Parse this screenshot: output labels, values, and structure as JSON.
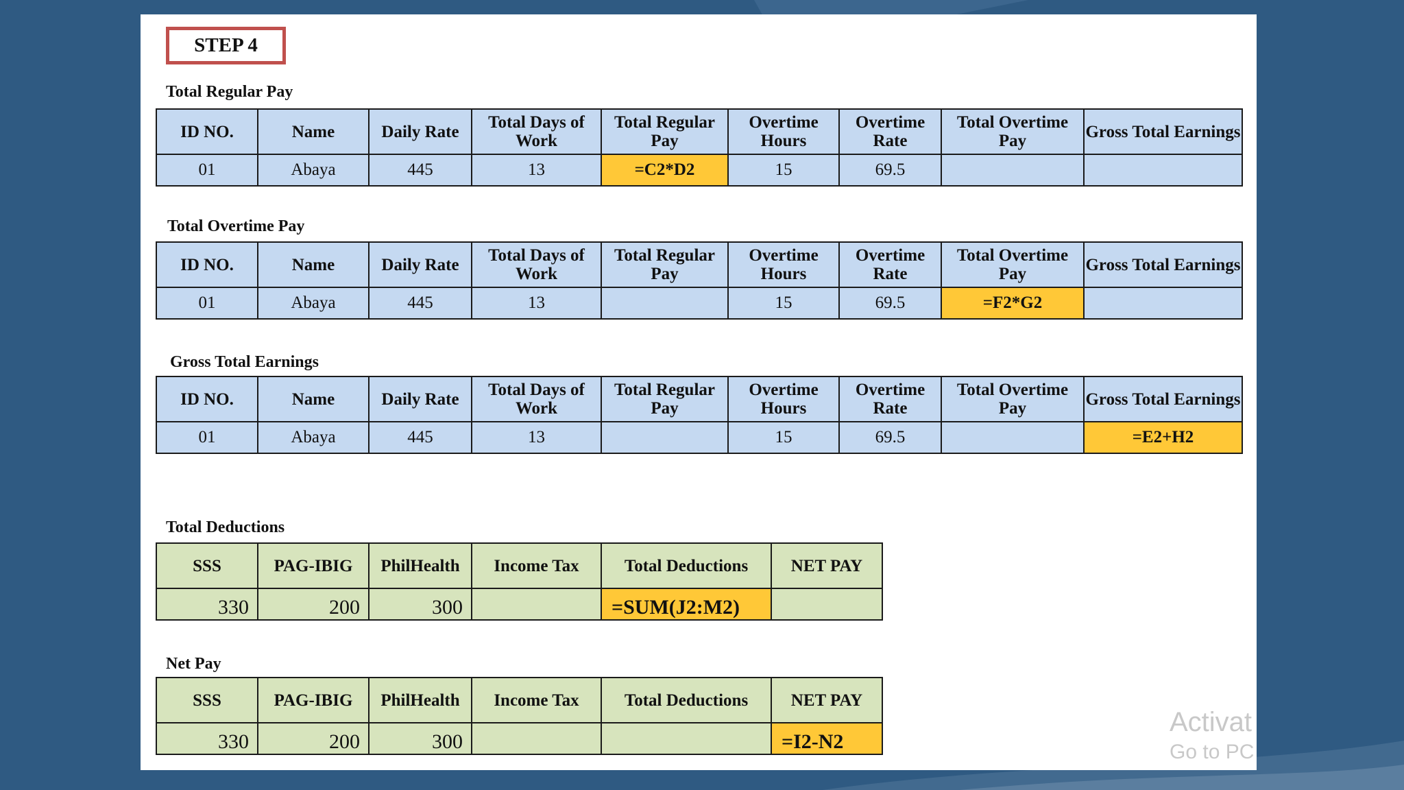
{
  "step_label": "STEP 4",
  "regular_pay": {
    "title": "Total Regular Pay",
    "headers": [
      "ID NO.",
      "Name",
      "Daily Rate",
      "Total Days of Work",
      "Total Regular Pay",
      "Overtime Hours",
      "Overtime Rate",
      "Total Overtime Pay",
      "Gross Total Earnings"
    ],
    "row": [
      "01",
      "Abaya",
      "445",
      "13",
      "=C2*D2",
      "15",
      "69.5",
      "",
      ""
    ]
  },
  "overtime_pay": {
    "title": "Total Overtime Pay",
    "headers": [
      "ID NO.",
      "Name",
      "Daily Rate",
      "Total Days of Work",
      "Total Regular Pay",
      "Overtime Hours",
      "Overtime Rate",
      "Total Overtime Pay",
      "Gross Total Earnings"
    ],
    "row": [
      "01",
      "Abaya",
      "445",
      "13",
      "",
      "15",
      "69.5",
      "=F2*G2",
      ""
    ]
  },
  "gross_earnings": {
    "title": "Gross Total Earnings",
    "headers": [
      "ID NO.",
      "Name",
      "Daily Rate",
      "Total Days of Work",
      "Total Regular Pay",
      "Overtime Hours",
      "Overtime Rate",
      "Total Overtime Pay",
      "Gross Total Earnings"
    ],
    "row": [
      "01",
      "Abaya",
      "445",
      "13",
      "",
      "15",
      "69.5",
      "",
      "=E2+H2"
    ]
  },
  "deductions": {
    "title": "Total Deductions",
    "headers": [
      "SSS",
      "PAG-IBIG",
      "PhilHealth",
      "Income Tax",
      "Total Deductions",
      "NET PAY"
    ],
    "row": [
      "330",
      "200",
      "300",
      "",
      "=SUM(J2:M2)",
      ""
    ]
  },
  "net_pay": {
    "title": "Net Pay",
    "headers": [
      "SSS",
      "PAG-IBIG",
      "PhilHealth",
      "Income Tax",
      "Total Deductions",
      "NET PAY"
    ],
    "row": [
      "330",
      "200",
      "300",
      "",
      "",
      "=I2-N2"
    ]
  },
  "watermark": {
    "line1": "Activat",
    "line2": "Go to PC"
  },
  "colors": {
    "background": "#2f5a82",
    "blue_cell": "#c5d9f1",
    "green_cell": "#d7e4bd",
    "highlight": "#ffc837",
    "step_border": "#c0504d"
  }
}
